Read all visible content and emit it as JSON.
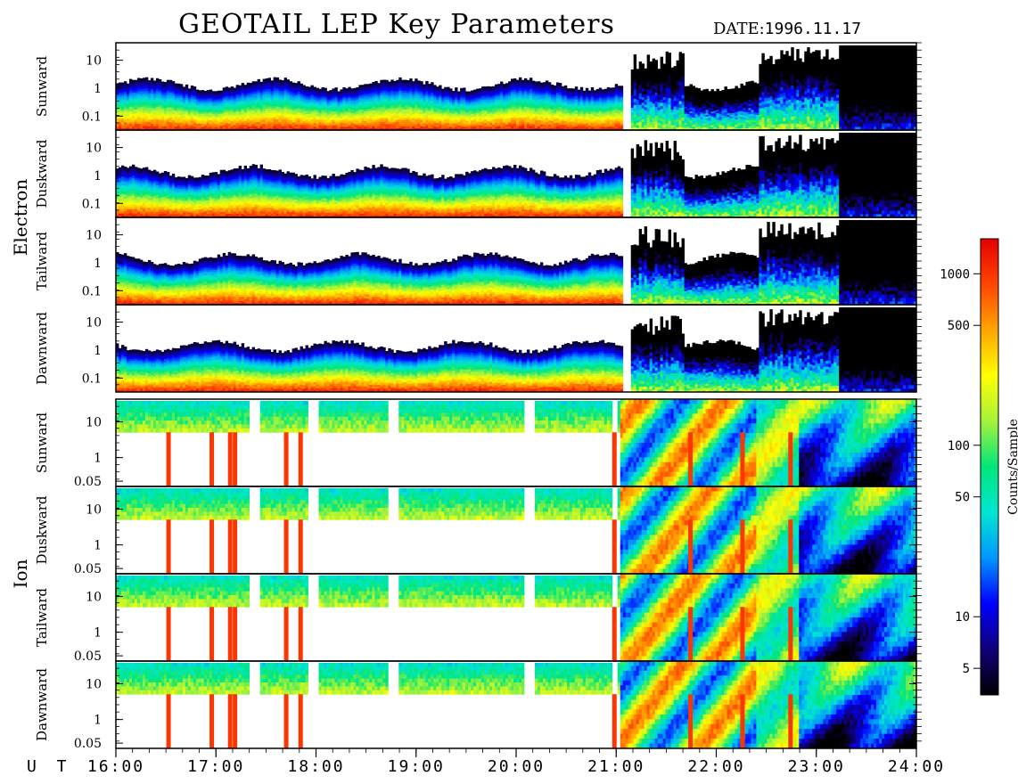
{
  "header": {
    "title": "GEOTAIL LEP Key Parameters",
    "date_label": "DATE:",
    "date_value": "1996.11.17"
  },
  "chart_data": {
    "type": "heatmap",
    "title": "GEOTAIL LEP Key Parameters",
    "x_axis": {
      "label": "U T",
      "range": [
        "16:00",
        "24:00"
      ],
      "ticks": [
        "16:00",
        "17:00",
        "18:00",
        "19:00",
        "20:00",
        "21:00",
        "22:00",
        "23:00",
        "24:00"
      ]
    },
    "colorbar": {
      "label": "Counts/Sample",
      "scale": "log",
      "range": [
        3.5,
        1600
      ],
      "ticks": [
        5,
        10,
        50,
        100,
        500,
        1000
      ],
      "tick_labels": [
        "5",
        "10",
        "50",
        "100",
        "500",
        "1000"
      ],
      "colors": [
        "#000000",
        "#10007a",
        "#0000ff",
        "#0096ff",
        "#00e6d2",
        "#00e67a",
        "#a6f23a",
        "#ffff00",
        "#ffa500",
        "#ff4500",
        "#e60000"
      ]
    },
    "groups": [
      {
        "name": "Electron",
        "y_scale": "log",
        "y_ticks": [
          "10",
          "1",
          "0.1"
        ],
        "panels": [
          "Sunward",
          "Duskward",
          "Tailward",
          "Dawnward"
        ]
      },
      {
        "name": "Ion",
        "y_scale": "log",
        "y_ticks": [
          "10",
          "1",
          "0.05"
        ],
        "panels": [
          "Sunward",
          "Duskward",
          "Tailward",
          "Dawnward"
        ]
      }
    ]
  }
}
